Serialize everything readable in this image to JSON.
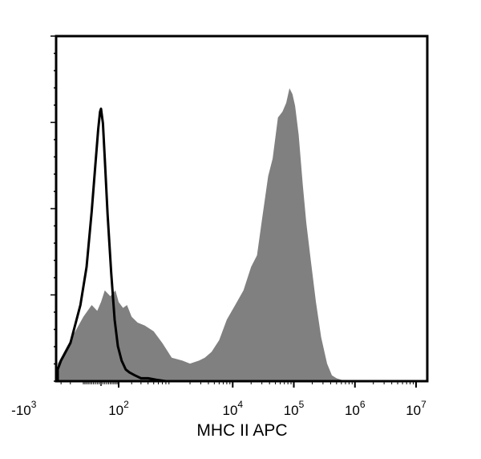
{
  "chart_data": {
    "type": "area",
    "title": "",
    "xlabel": "MHC II APC",
    "ylabel": "",
    "x_scale": "biexponential",
    "grid": false,
    "legend": "none",
    "x_ticks": [
      {
        "value": -1000,
        "base": "-10",
        "exp": "3"
      },
      {
        "value": 100,
        "base": "10",
        "exp": "2"
      },
      {
        "value": 10000,
        "base": "10",
        "exp": "4"
      },
      {
        "value": 100000,
        "base": "10",
        "exp": "5"
      },
      {
        "value": 1000000,
        "base": "10",
        "exp": "6"
      },
      {
        "value": 10000000,
        "base": "10",
        "exp": "7"
      }
    ],
    "colors": {
      "filled": "#808080",
      "outline": "#000000"
    },
    "series": [
      {
        "style": "filled",
        "x": [
          -3000,
          -1500,
          -800,
          -400,
          -200,
          -100,
          -50,
          -20,
          0,
          20,
          50,
          80,
          100,
          130,
          160,
          200,
          260,
          350,
          500,
          700,
          1000,
          1500,
          2000,
          2800,
          3500,
          4500,
          6000,
          8000,
          11000,
          15000,
          20000,
          25000,
          30000,
          38000,
          45000,
          55000,
          65000,
          75000,
          85000,
          95000,
          105000,
          120000,
          140000,
          160000,
          190000,
          230000,
          280000,
          350000,
          420000,
          500000,
          700000,
          1000000,
          10000000
        ],
        "y": [
          0.0,
          0.01,
          0.03,
          0.06,
          0.14,
          0.22,
          0.26,
          0.24,
          0.27,
          0.31,
          0.29,
          0.31,
          0.27,
          0.25,
          0.26,
          0.22,
          0.2,
          0.19,
          0.17,
          0.13,
          0.08,
          0.07,
          0.06,
          0.07,
          0.08,
          0.1,
          0.14,
          0.21,
          0.26,
          0.31,
          0.39,
          0.43,
          0.55,
          0.7,
          0.76,
          0.9,
          0.92,
          0.95,
          1.0,
          0.98,
          0.94,
          0.84,
          0.67,
          0.54,
          0.41,
          0.27,
          0.15,
          0.06,
          0.02,
          0.01,
          0.0,
          0.0,
          0.0
        ]
      },
      {
        "style": "outline",
        "x": [
          -3000,
          -1500,
          -800,
          -500,
          -300,
          -200,
          -120,
          -80,
          -50,
          -30,
          -15,
          -5,
          0,
          10,
          20,
          35,
          55,
          75,
          95,
          120,
          150,
          180,
          230,
          300,
          400,
          550,
          800,
          1200,
          2000,
          10000000
        ],
        "y": [
          0.0,
          0.01,
          0.02,
          0.04,
          0.07,
          0.13,
          0.26,
          0.39,
          0.58,
          0.74,
          0.86,
          0.92,
          0.93,
          0.88,
          0.76,
          0.57,
          0.37,
          0.21,
          0.12,
          0.07,
          0.04,
          0.03,
          0.02,
          0.01,
          0.01,
          0.005,
          0.0,
          0.0,
          0.0,
          0.0
        ]
      }
    ]
  }
}
